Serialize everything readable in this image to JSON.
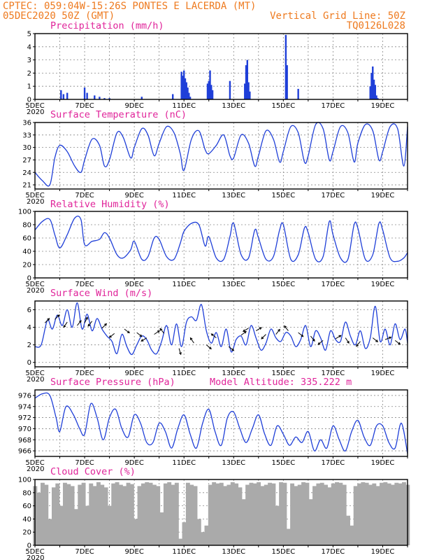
{
  "header": {
    "line1": "CPTEC:   059:04W-15:26S   PONTES E LACERDA (MT)",
    "line2_left": "05DEC2020 50Z (GMT)",
    "line2_right": "Vertical Grid Line: 50Z",
    "line3_right": "TQ0126L028",
    "model_altitude": "Model Altitude: 335.222 m"
  },
  "colors": {
    "header": "#ee7a1f",
    "title": "#e0249a",
    "series": "#1f3fd8",
    "cloud": "#aaaaaa",
    "arrow": "#000000"
  },
  "x_axis": {
    "range": [
      0,
      15
    ],
    "unit": "days since 05DEC",
    "ticks": [
      "5DEC",
      "7DEC",
      "9DEC",
      "11DEC",
      "13DEC",
      "15DEC",
      "17DEC",
      "19DEC"
    ],
    "tick_positions": [
      0,
      2,
      4,
      6,
      8,
      10,
      12,
      14
    ],
    "year_label": "2020"
  },
  "chart_data": [
    {
      "type": "bar",
      "title": "Precipitation (mm/h)",
      "ylim": [
        0,
        5
      ],
      "yticks": [
        0,
        1,
        2,
        3,
        4,
        5
      ],
      "bars": [
        [
          1.05,
          0.7
        ],
        [
          1.15,
          0.4
        ],
        [
          1.3,
          0.5
        ],
        [
          2.0,
          0.9
        ],
        [
          2.1,
          0.5
        ],
        [
          2.4,
          0.3
        ],
        [
          2.6,
          0.2
        ],
        [
          2.8,
          0.1
        ],
        [
          3.0,
          0.1
        ],
        [
          4.3,
          0.2
        ],
        [
          5.55,
          0.4
        ],
        [
          5.9,
          2.1
        ],
        [
          5.95,
          1.8
        ],
        [
          6.0,
          2.2
        ],
        [
          6.05,
          1.6
        ],
        [
          6.1,
          1.3
        ],
        [
          6.15,
          0.9
        ],
        [
          6.2,
          0.5
        ],
        [
          6.25,
          0.2
        ],
        [
          6.95,
          1.2
        ],
        [
          7.0,
          1.4
        ],
        [
          7.05,
          2.2
        ],
        [
          7.1,
          1.1
        ],
        [
          7.15,
          0.7
        ],
        [
          7.85,
          1.4
        ],
        [
          8.45,
          1.2
        ],
        [
          8.5,
          2.6
        ],
        [
          8.55,
          3.0
        ],
        [
          8.6,
          1.3
        ],
        [
          8.65,
          0.6
        ],
        [
          10.1,
          4.9
        ],
        [
          10.15,
          2.6
        ],
        [
          10.6,
          0.8
        ],
        [
          13.5,
          1.0
        ],
        [
          13.55,
          2.0
        ],
        [
          13.6,
          2.5
        ],
        [
          13.65,
          1.5
        ],
        [
          13.7,
          1.1
        ],
        [
          13.75,
          0.3
        ],
        [
          13.8,
          0.1
        ]
      ]
    },
    {
      "type": "line",
      "title": "Surface Temperature (nC)",
      "ylim": [
        20,
        36
      ],
      "yticks": [
        21,
        24,
        27,
        30,
        33,
        36
      ],
      "x": [
        0,
        0.3,
        0.6,
        0.8,
        1.0,
        1.3,
        1.6,
        1.85,
        2.0,
        2.3,
        2.6,
        2.8,
        3.0,
        3.3,
        3.55,
        3.85,
        4.0,
        4.3,
        4.55,
        4.8,
        5.0,
        5.3,
        5.6,
        5.85,
        6.0,
        6.3,
        6.6,
        6.85,
        7.0,
        7.3,
        7.6,
        7.85,
        8.0,
        8.3,
        8.6,
        8.85,
        9.0,
        9.3,
        9.6,
        9.85,
        10.0,
        10.3,
        10.6,
        10.85,
        11.0,
        11.3,
        11.6,
        11.85,
        12.0,
        12.3,
        12.6,
        12.85,
        13.0,
        13.3,
        13.6,
        13.85,
        14.0,
        14.3,
        14.6,
        14.85,
        15.0
      ],
      "y": [
        24.0,
        22.0,
        21.0,
        27.5,
        30.5,
        29.0,
        25.5,
        24.0,
        27.0,
        32.0,
        30.5,
        25.5,
        27.0,
        33.5,
        32.5,
        27.5,
        30.0,
        34.5,
        33.0,
        28.0,
        31.0,
        35.0,
        33.5,
        28.5,
        24.5,
        32.0,
        34.0,
        29.5,
        28.5,
        30.5,
        33.0,
        28.0,
        27.5,
        33.0,
        31.0,
        25.5,
        28.0,
        34.0,
        32.0,
        26.5,
        29.0,
        35.0,
        33.5,
        26.5,
        28.0,
        35.5,
        34.5,
        27.0,
        29.0,
        35.0,
        33.5,
        26.5,
        31.0,
        35.5,
        34.0,
        27.0,
        29.0,
        35.0,
        34.5,
        25.5,
        35.0
      ]
    },
    {
      "type": "line",
      "title": "Relative Humidity (%)",
      "ylim": [
        0,
        100
      ],
      "yticks": [
        0,
        20,
        40,
        60,
        80,
        100
      ],
      "x": [
        0,
        0.3,
        0.6,
        0.8,
        1.0,
        1.3,
        1.6,
        1.85,
        2.0,
        2.3,
        2.6,
        2.8,
        3.0,
        3.3,
        3.55,
        3.85,
        4.0,
        4.3,
        4.55,
        4.8,
        5.0,
        5.3,
        5.6,
        5.85,
        6.0,
        6.3,
        6.6,
        6.85,
        7.0,
        7.3,
        7.6,
        7.85,
        8.0,
        8.3,
        8.6,
        8.85,
        9.0,
        9.3,
        9.6,
        9.85,
        10.0,
        10.3,
        10.6,
        10.85,
        11.0,
        11.3,
        11.6,
        11.85,
        12.0,
        12.3,
        12.6,
        12.85,
        13.0,
        13.3,
        13.6,
        13.85,
        14.0,
        14.3,
        14.6,
        14.85,
        15.0
      ],
      "y": [
        72,
        85,
        88,
        65,
        45,
        65,
        90,
        88,
        50,
        55,
        58,
        68,
        60,
        35,
        30,
        42,
        55,
        28,
        32,
        60,
        58,
        32,
        28,
        52,
        70,
        82,
        80,
        48,
        62,
        30,
        28,
        62,
        82,
        35,
        30,
        72,
        60,
        28,
        32,
        72,
        80,
        28,
        35,
        75,
        68,
        28,
        32,
        85,
        65,
        30,
        28,
        80,
        75,
        28,
        35,
        82,
        72,
        30,
        25,
        30,
        38
      ]
    },
    {
      "type": "line",
      "title": "Surface Wind (m/s)",
      "ylim": [
        -0.5,
        7
      ],
      "yticks": [
        0,
        2,
        4,
        6
      ],
      "x": [
        0,
        0.25,
        0.5,
        0.7,
        0.9,
        1.1,
        1.3,
        1.5,
        1.7,
        1.9,
        2.1,
        2.3,
        2.5,
        2.7,
        2.9,
        3.1,
        3.3,
        3.5,
        3.7,
        3.9,
        4.1,
        4.3,
        4.5,
        4.7,
        4.9,
        5.1,
        5.3,
        5.5,
        5.7,
        5.9,
        6.1,
        6.3,
        6.5,
        6.7,
        6.9,
        7.1,
        7.3,
        7.5,
        7.7,
        7.9,
        8.1,
        8.3,
        8.5,
        8.7,
        8.9,
        9.1,
        9.3,
        9.5,
        9.7,
        9.9,
        10.1,
        10.3,
        10.5,
        10.7,
        10.9,
        11.1,
        11.3,
        11.5,
        11.7,
        11.9,
        12.1,
        12.3,
        12.5,
        12.7,
        12.9,
        13.1,
        13.3,
        13.5,
        13.7,
        13.9,
        14.1,
        14.3,
        14.5,
        14.7,
        14.9,
        15.0
      ],
      "y": [
        1.8,
        2.0,
        4.8,
        3.8,
        5.4,
        4.2,
        6.0,
        4.0,
        6.8,
        3.8,
        5.5,
        3.6,
        5.0,
        3.8,
        3.0,
        2.4,
        1.0,
        3.2,
        1.8,
        0.9,
        2.0,
        3.0,
        2.6,
        1.4,
        1.0,
        2.4,
        4.2,
        2.0,
        4.4,
        1.8,
        4.6,
        5.2,
        4.8,
        6.6,
        3.6,
        2.2,
        3.4,
        1.8,
        3.8,
        1.2,
        2.6,
        3.0,
        2.0,
        4.2,
        2.8,
        1.4,
        2.2,
        3.8,
        2.8,
        2.4,
        3.4,
        3.0,
        1.8,
        2.6,
        4.2,
        1.8,
        3.6,
        2.8,
        1.4,
        3.6,
        2.6,
        2.4,
        4.6,
        3.0,
        2.0,
        3.6,
        1.6,
        2.8,
        6.4,
        2.4,
        3.8,
        2.0,
        4.4,
        2.6,
        3.8,
        2.2
      ],
      "arrows": [
        [
          0.4,
          4.5,
          4,
          -4
        ],
        [
          0.8,
          4.9,
          5,
          -5
        ],
        [
          1.3,
          4.6,
          -4,
          6
        ],
        [
          1.7,
          4.2,
          4,
          -5
        ],
        [
          2.0,
          4.5,
          3,
          -6
        ],
        [
          2.3,
          4.7,
          -4,
          5
        ],
        [
          2.7,
          3.9,
          4,
          -4
        ],
        [
          3.2,
          3.3,
          -5,
          4
        ],
        [
          3.6,
          3.8,
          4,
          3
        ],
        [
          4.1,
          3.4,
          5,
          4
        ],
        [
          4.5,
          2.8,
          -5,
          3
        ],
        [
          4.8,
          3.2,
          6,
          -4
        ],
        [
          5.2,
          3.3,
          -4,
          -5
        ],
        [
          5.8,
          1.6,
          3,
          10
        ],
        [
          6.4,
          2.2,
          -4,
          -6
        ],
        [
          6.9,
          2.0,
          6,
          5
        ],
        [
          7.3,
          2.8,
          -5,
          -4
        ],
        [
          7.8,
          1.8,
          4,
          3
        ],
        [
          8.3,
          3.1,
          4,
          -3
        ],
        [
          8.6,
          3.9,
          -5,
          3
        ],
        [
          8.9,
          3.6,
          5,
          -3
        ],
        [
          9.3,
          3.2,
          -4,
          4
        ],
        [
          9.7,
          3.2,
          4,
          -5
        ],
        [
          10.2,
          3.6,
          -4,
          -5
        ],
        [
          10.6,
          3.4,
          5,
          4
        ],
        [
          11.1,
          3.0,
          4,
          5
        ],
        [
          11.6,
          2.5,
          -5,
          4
        ],
        [
          12.1,
          2.7,
          5,
          -3
        ],
        [
          12.5,
          2.8,
          4,
          6
        ],
        [
          13.1,
          2.4,
          -4,
          5
        ],
        [
          13.6,
          2.8,
          5,
          4
        ],
        [
          14.1,
          2.6,
          5,
          -2
        ],
        [
          14.5,
          2.5,
          4,
          3
        ]
      ]
    },
    {
      "type": "line",
      "title": "Surface Pressure (hPa)",
      "ylim": [
        965,
        977
      ],
      "yticks": [
        966,
        968,
        970,
        972,
        974,
        976
      ],
      "x": [
        0,
        0.3,
        0.6,
        0.85,
        1.0,
        1.25,
        1.55,
        1.8,
        2.0,
        2.25,
        2.5,
        2.75,
        3.0,
        3.25,
        3.5,
        3.75,
        4.0,
        4.25,
        4.5,
        4.75,
        5.0,
        5.25,
        5.5,
        5.75,
        6.0,
        6.25,
        6.5,
        6.75,
        7.0,
        7.25,
        7.5,
        7.75,
        8.0,
        8.25,
        8.5,
        8.75,
        9.0,
        9.25,
        9.5,
        9.75,
        10.0,
        10.25,
        10.5,
        10.75,
        11.0,
        11.25,
        11.5,
        11.75,
        12.0,
        12.25,
        12.5,
        12.75,
        13.0,
        13.25,
        13.5,
        13.75,
        14.0,
        14.25,
        14.5,
        14.75,
        15.0
      ],
      "y": [
        975.5,
        976.3,
        976.0,
        972.0,
        969.5,
        974.0,
        972.5,
        970.0,
        969.0,
        974.5,
        972.0,
        968.0,
        972.0,
        973.5,
        970.0,
        968.5,
        972.5,
        971.0,
        967.5,
        967.5,
        971.0,
        969.5,
        966.5,
        970.0,
        972.5,
        969.0,
        966.5,
        971.0,
        973.5,
        969.5,
        967.0,
        972.0,
        973.0,
        970.0,
        967.5,
        970.0,
        972.5,
        969.0,
        967.0,
        970.5,
        969.0,
        967.0,
        968.5,
        967.5,
        969.5,
        966.0,
        968.0,
        966.5,
        970.5,
        968.0,
        966.0,
        969.5,
        971.5,
        968.5,
        967.0,
        970.5,
        970.5,
        967.5,
        966.5,
        971.0,
        965.5
      ]
    },
    {
      "type": "area",
      "title": "Cloud Cover (%)",
      "ylim": [
        0,
        100
      ],
      "yticks": [
        0,
        20,
        40,
        60,
        80,
        100
      ],
      "x": [
        0,
        0.15,
        0.3,
        0.45,
        0.6,
        0.75,
        0.9,
        1.05,
        1.2,
        1.35,
        1.5,
        1.65,
        1.8,
        1.95,
        2.1,
        2.25,
        2.4,
        2.55,
        2.7,
        2.85,
        3.0,
        3.15,
        3.3,
        3.45,
        3.6,
        3.75,
        3.9,
        4.05,
        4.2,
        4.35,
        4.5,
        4.65,
        4.8,
        4.95,
        5.1,
        5.25,
        5.4,
        5.55,
        5.7,
        5.85,
        6.0,
        6.15,
        6.3,
        6.45,
        6.6,
        6.75,
        6.9,
        7.05,
        7.2,
        7.35,
        7.5,
        7.65,
        7.8,
        7.95,
        8.1,
        8.25,
        8.4,
        8.55,
        8.7,
        8.85,
        9.0,
        9.15,
        9.3,
        9.45,
        9.6,
        9.75,
        9.9,
        10.05,
        10.2,
        10.35,
        10.5,
        10.65,
        10.8,
        10.95,
        11.1,
        11.25,
        11.4,
        11.55,
        11.7,
        11.85,
        12.0,
        12.15,
        12.3,
        12.45,
        12.6,
        12.75,
        12.9,
        13.05,
        13.2,
        13.35,
        13.5,
        13.65,
        13.8,
        13.95,
        14.1,
        14.25,
        14.4,
        14.55,
        14.7,
        14.85,
        15.0
      ],
      "y": [
        90,
        80,
        95,
        92,
        40,
        88,
        94,
        60,
        95,
        93,
        90,
        55,
        92,
        95,
        60,
        94,
        90,
        96,
        92,
        88,
        60,
        94,
        96,
        92,
        90,
        95,
        93,
        40,
        90,
        94,
        96,
        95,
        92,
        90,
        50,
        94,
        96,
        92,
        95,
        10,
        35,
        95,
        92,
        90,
        40,
        20,
        30,
        92,
        96,
        94,
        95,
        90,
        92,
        96,
        94,
        88,
        70,
        92,
        95,
        94,
        96,
        90,
        92,
        95,
        94,
        60,
        96,
        95,
        25,
        94,
        90,
        92,
        96,
        95,
        70,
        90,
        94,
        95,
        92,
        88,
        94,
        96,
        95,
        92,
        45,
        30,
        90,
        94,
        96,
        95,
        92,
        94,
        90,
        95,
        96,
        94,
        92,
        95,
        94,
        96,
        92
      ]
    }
  ]
}
